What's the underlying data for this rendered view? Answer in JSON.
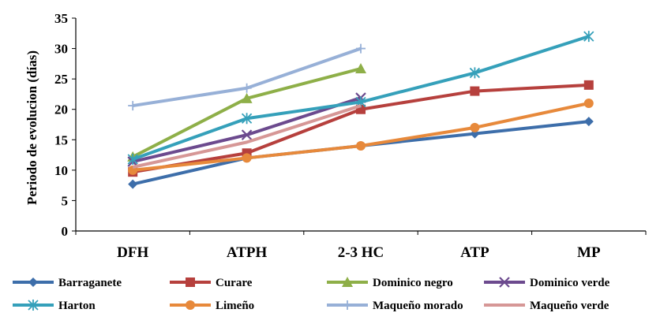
{
  "chart_data": {
    "type": "line",
    "title": "",
    "xlabel": "",
    "ylabel": "Periodo de evolucion (días)",
    "ylim": [
      0,
      35
    ],
    "yticks": [
      0,
      5,
      10,
      15,
      20,
      25,
      30,
      35
    ],
    "categories": [
      "DFH",
      "ATPH",
      "2-3 HC",
      "ATP",
      "MP"
    ],
    "grid": false,
    "legend_position": "bottom",
    "series": [
      {
        "name": "Barraganete",
        "values": [
          7.7,
          12,
          14,
          16,
          18
        ],
        "color": "#3d6eaa",
        "marker": "diamond"
      },
      {
        "name": "Curare",
        "values": [
          9.7,
          12.8,
          20,
          23,
          24
        ],
        "color": "#b6403d",
        "marker": "square"
      },
      {
        "name": "Dominico negro",
        "values": [
          12.2,
          21.8,
          26.7,
          null,
          null
        ],
        "color": "#8eaf48",
        "marker": "triangle"
      },
      {
        "name": "Dominico verde",
        "values": [
          11.4,
          15.8,
          21.9,
          null,
          null
        ],
        "color": "#6c4a8e",
        "marker": "x"
      },
      {
        "name": "Harton",
        "values": [
          11.8,
          18.5,
          21.2,
          26,
          32
        ],
        "color": "#35a0ba",
        "marker": "asterisk"
      },
      {
        "name": "Limeño",
        "values": [
          10,
          12,
          14,
          17,
          21
        ],
        "color": "#e7893b",
        "marker": "circle"
      },
      {
        "name": "Maqueño morado",
        "values": [
          20.6,
          23.5,
          30,
          null,
          null
        ],
        "color": "#97b0d7",
        "marker": "plus"
      },
      {
        "name": "Maqueño verde",
        "values": [
          10.5,
          14.6,
          20.6,
          null,
          null
        ],
        "color": "#d69796",
        "marker": "none"
      }
    ]
  }
}
